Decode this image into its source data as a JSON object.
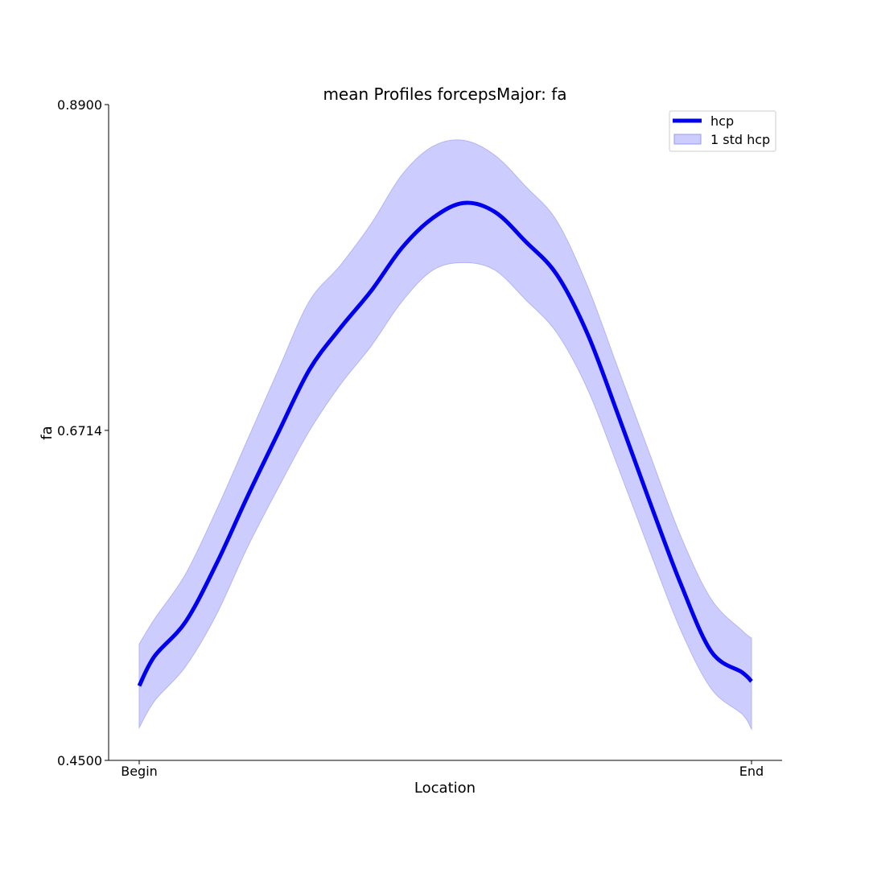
{
  "chart_data": {
    "type": "line",
    "title": "mean Profiles forcepsMajor: fa",
    "xlabel": "Location",
    "ylabel": "fa",
    "x_tick_labels": [
      "Begin",
      "End"
    ],
    "x_range": [
      0,
      99
    ],
    "y_ticks": [
      0.45,
      0.6714,
      0.89
    ],
    "y_tick_labels": [
      "0.4500",
      "0.6714",
      "0.8900"
    ],
    "ylim": [
      0.45,
      0.89
    ],
    "grid": false,
    "legend": {
      "position": "upper right",
      "entries": [
        {
          "label": "hcp",
          "kind": "line"
        },
        {
          "label": "1 std hcp",
          "kind": "band"
        }
      ]
    },
    "series": [
      {
        "name": "hcp",
        "color": "#0000ee",
        "x": [
          0,
          2.5,
          7.5,
          12.5,
          17.5,
          22.5,
          27.5,
          32.5,
          37.5,
          42.5,
          47.5,
          52.5,
          57.5,
          62.5,
          67.5,
          72.5,
          77.5,
          82.5,
          87.5,
          92.5,
          97.5,
          99
        ],
        "mean": [
          0.5,
          0.52,
          0.543,
          0.582,
          0.627,
          0.67,
          0.712,
          0.74,
          0.765,
          0.794,
          0.814,
          0.824,
          0.818,
          0.798,
          0.776,
          0.736,
          0.681,
          0.624,
          0.569,
          0.523,
          0.509,
          0.503
        ],
        "std_upper": [
          0.528,
          0.545,
          0.575,
          0.618,
          0.665,
          0.712,
          0.758,
          0.782,
          0.81,
          0.843,
          0.862,
          0.866,
          0.856,
          0.835,
          0.812,
          0.768,
          0.712,
          0.656,
          0.601,
          0.558,
          0.537,
          0.532
        ],
        "std_lower": [
          0.472,
          0.49,
          0.513,
          0.548,
          0.593,
          0.633,
          0.671,
          0.702,
          0.728,
          0.758,
          0.779,
          0.784,
          0.779,
          0.759,
          0.737,
          0.699,
          0.646,
          0.591,
          0.538,
          0.498,
          0.481,
          0.471
        ]
      }
    ]
  }
}
